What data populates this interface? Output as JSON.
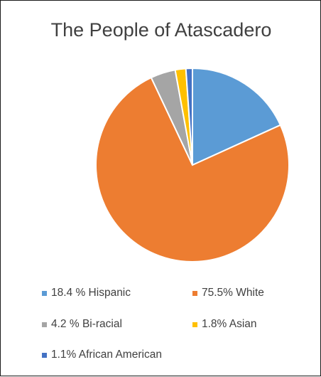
{
  "chart_data": {
    "type": "pie",
    "title": "The People of Atascadero",
    "slices": [
      {
        "label": "18.4 % Hispanic",
        "value": 18.4,
        "color": "#5b9bd5"
      },
      {
        "label": "75.5% White",
        "value": 75.5,
        "color": "#ed7d31"
      },
      {
        "label": "4.2 % Bi-racial",
        "value": 4.2,
        "color": "#a5a5a5"
      },
      {
        "label": "1.8% Asian",
        "value": 1.8,
        "color": "#ffc000"
      },
      {
        "label": "1.1% African American",
        "value": 1.1,
        "color": "#4472c4"
      }
    ],
    "legend_position": "bottom"
  }
}
